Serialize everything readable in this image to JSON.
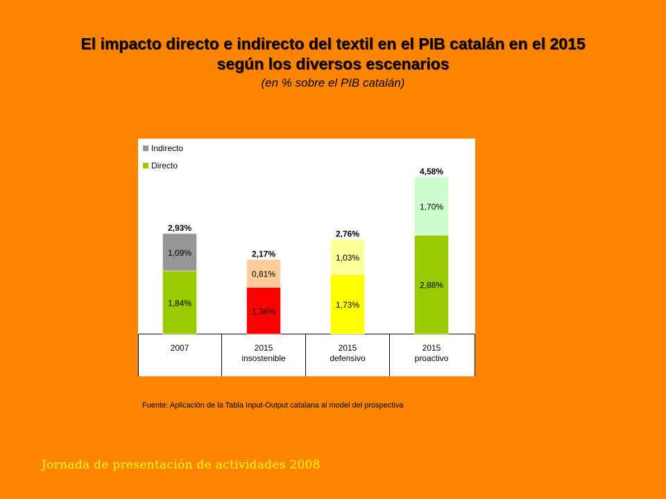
{
  "title_line1": "El impacto directo e indirecto del textil en el PIB catalán en el 2015",
  "title_line2": "según los diversos escenarios",
  "subtitle": "(en % sobre el PIB catalán)",
  "source": "Fuente: Aplicación de la Tabla Input-Output catalana al model del prospectiva",
  "footer": "Jornada de presentación de actividades 2008",
  "chart_data": {
    "type": "bar",
    "stacked": true,
    "categories": [
      [
        "2007"
      ],
      [
        "2015",
        "insostenible"
      ],
      [
        "2015",
        "defensivo"
      ],
      [
        "2015",
        "proactivo"
      ]
    ],
    "series": [
      {
        "name": "Directo",
        "values": [
          1.84,
          1.36,
          1.73,
          2.88
        ],
        "labels": [
          "1,84%",
          "1,36%",
          "1,73%",
          "2,88%"
        ],
        "colors": [
          "#99CC00",
          "#FF0000",
          "#FFFF00",
          "#99CC00"
        ]
      },
      {
        "name": "Indirecto",
        "values": [
          1.09,
          0.81,
          1.03,
          1.7
        ],
        "labels": [
          "1,09%",
          "0,81%",
          "1,03%",
          "1,70%"
        ],
        "colors": [
          "#969696",
          "#FFCC99",
          "#FFFF99",
          "#CCFFCC"
        ]
      }
    ],
    "totals": [
      "2,93%",
      "2,17%",
      "2,76%",
      "4,58%"
    ],
    "legend": [
      {
        "name": "Indirecto",
        "color": "#969696"
      },
      {
        "name": "Directo",
        "color": "#99CC00"
      }
    ],
    "legend_position": "top-left",
    "ylim": [
      0,
      4.9
    ],
    "grid": false
  }
}
